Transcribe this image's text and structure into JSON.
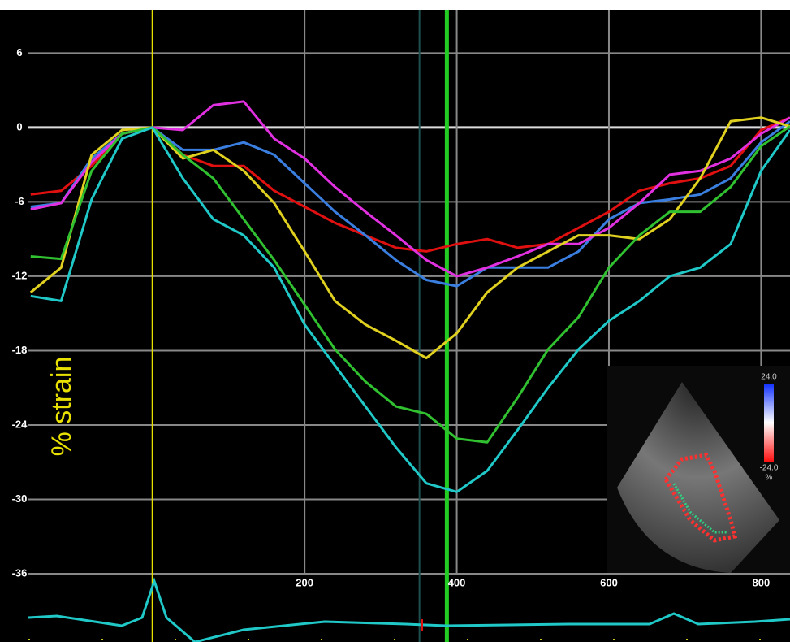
{
  "chart_data": {
    "type": "line",
    "y_label": "% strain",
    "x": [
      -160,
      -120,
      -80,
      -40,
      0,
      40,
      80,
      120,
      160,
      200,
      240,
      280,
      320,
      360,
      400,
      440,
      480,
      520,
      560,
      600,
      640,
      680,
      720,
      760,
      800,
      838
    ],
    "series": [
      {
        "color": "#e01010",
        "values": [
          -5.4,
          -5.1,
          -3.1,
          -0.5,
          0,
          -2.2,
          -3.1,
          -3.1,
          -5.1,
          -6.4,
          -7.7,
          -8.7,
          -9.7,
          -10,
          -9.4,
          -9,
          -9.7,
          -9.4,
          -8.1,
          -6.8,
          -5.1,
          -4.5,
          -4.1,
          -3.1,
          -0.2,
          0.8
        ]
      },
      {
        "color": "#3a7ee0",
        "values": [
          -6.4,
          -6.1,
          -2.5,
          -0.5,
          0,
          -1.8,
          -1.8,
          -1.2,
          -2.2,
          -4.5,
          -6.8,
          -8.7,
          -10.7,
          -12.3,
          -12.8,
          -11.3,
          -11.3,
          -11.3,
          -10,
          -7.4,
          -6.1,
          -5.8,
          -5.4,
          -4.1,
          -1.2,
          0.5
        ]
      },
      {
        "color": "#e030e0",
        "values": [
          -6.6,
          -6.1,
          -2.8,
          -0.5,
          0,
          -0.2,
          1.8,
          2.1,
          -0.9,
          -2.5,
          -4.8,
          -6.8,
          -8.7,
          -10.7,
          -12,
          -11.3,
          -10.4,
          -9.4,
          -9.4,
          -8.1,
          -6.1,
          -3.8,
          -3.5,
          -2.5,
          -0.5,
          0.8
        ]
      },
      {
        "color": "#e0d020",
        "values": [
          -13.3,
          -11.3,
          -2.2,
          -0.2,
          0,
          -2.5,
          -1.8,
          -3.5,
          -6.1,
          -10,
          -14,
          -15.9,
          -17.2,
          -18.6,
          -16.6,
          -13.3,
          -11.3,
          -10,
          -8.7,
          -8.7,
          -9,
          -7.4,
          -4.1,
          0.5,
          0.8,
          0.1
        ]
      },
      {
        "color": "#30c030",
        "values": [
          -10.4,
          -10.6,
          -3.5,
          -0.5,
          0,
          -2.2,
          -4.1,
          -7.4,
          -10.7,
          -14.3,
          -17.9,
          -20.5,
          -22.5,
          -23.1,
          -25.1,
          -25.4,
          -21.8,
          -17.9,
          -15.3,
          -11.3,
          -8.7,
          -6.8,
          -6.8,
          -4.8,
          -1.5,
          0.1
        ]
      },
      {
        "color": "#20c8c8",
        "values": [
          -13.6,
          -14,
          -5.8,
          -0.9,
          0,
          -4.1,
          -7.4,
          -8.7,
          -11.3,
          -15.9,
          -19.2,
          -22.5,
          -25.8,
          -28.7,
          -29.4,
          -27.7,
          -24.4,
          -21,
          -17.9,
          -15.6,
          -14,
          -12,
          -11.3,
          -9.4,
          -3.5,
          -0.2
        ]
      }
    ],
    "xlim": [
      -163,
      838
    ],
    "ylim": [
      -36,
      9.5
    ],
    "xticks": [
      200,
      400,
      600,
      800
    ],
    "yticks": [
      6,
      0,
      -6,
      -12,
      -18,
      -24,
      -30,
      -36
    ],
    "grid": true,
    "markers": [
      {
        "x": 0,
        "color": "#e8e000"
      },
      {
        "x": 351,
        "color": "#1e5050"
      },
      {
        "x": 387,
        "color": "#22cc22"
      }
    ],
    "inset": {
      "max_label": "24.0",
      "min_label": "-24.0",
      "unit": "%"
    }
  }
}
